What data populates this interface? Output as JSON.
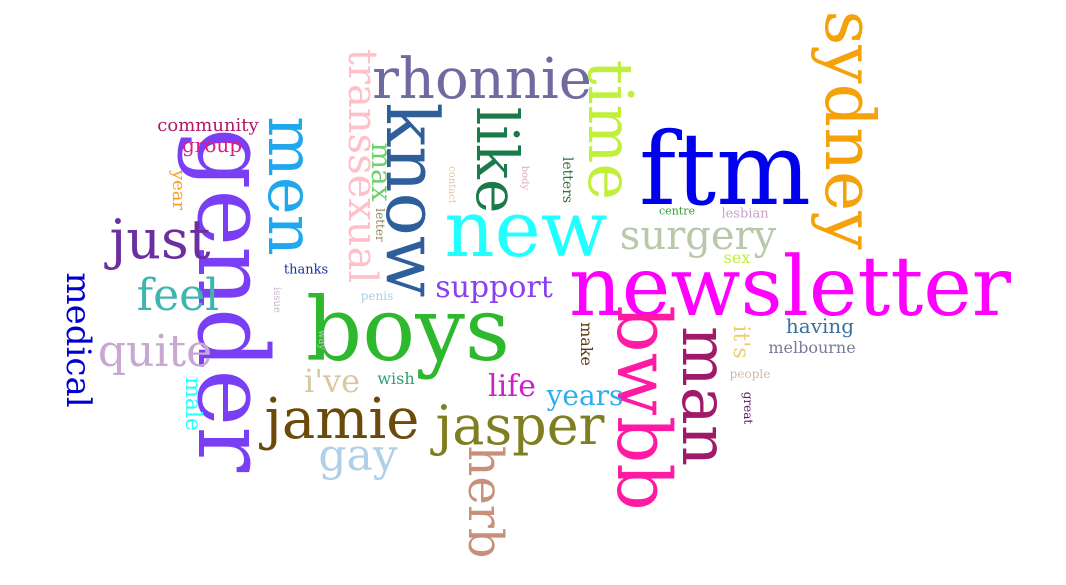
{
  "words": [
    {
      "text": "newsletter",
      "color": "#ff00ff"
    },
    {
      "text": "boys",
      "color": "#2eb82e"
    },
    {
      "text": "ftm",
      "color": "#0000ee"
    },
    {
      "text": "new",
      "color": "#22ffff"
    },
    {
      "text": "gender",
      "color": "#7a3ff5"
    },
    {
      "text": "bwbb",
      "color": "#ff1aa3"
    },
    {
      "text": "sydney",
      "color": "#f5a20a"
    },
    {
      "text": "know",
      "color": "#2f5f9a"
    },
    {
      "text": "rhonnie",
      "color": "#6f6aa0"
    },
    {
      "text": "time",
      "color": "#c0f03a"
    },
    {
      "text": "like",
      "color": "#1a7a4a"
    },
    {
      "text": "man",
      "color": "#a01a6a"
    },
    {
      "text": "jasper",
      "color": "#7f7f22"
    },
    {
      "text": "jamie",
      "color": "#6b4a0a"
    },
    {
      "text": "men",
      "color": "#1fa8ee"
    },
    {
      "text": "just",
      "color": "#6b2fa0"
    },
    {
      "text": "herb",
      "color": "#c8907a"
    },
    {
      "text": "transsexual",
      "color": "#ffc0c8"
    },
    {
      "text": "surgery",
      "color": "#b8c8a8"
    },
    {
      "text": "quite",
      "color": "#c8a8d0"
    },
    {
      "text": "feel",
      "color": "#3fb5b0"
    },
    {
      "text": "gay",
      "color": "#b0d0e8"
    },
    {
      "text": "medical",
      "color": "#0000cc"
    },
    {
      "text": "support",
      "color": "#8a3ff0"
    },
    {
      "text": "max",
      "color": "#6fd06f"
    },
    {
      "text": "i've",
      "color": "#d8c8a0"
    },
    {
      "text": "life",
      "color": "#cc22cc"
    },
    {
      "text": "years",
      "color": "#2ab0ee"
    },
    {
      "text": "male",
      "color": "#22ffff"
    },
    {
      "text": "having",
      "color": "#3a6fa0"
    },
    {
      "text": "it's",
      "color": "#e8d070"
    },
    {
      "text": "community",
      "color": "#b0186a"
    },
    {
      "text": "group",
      "color": "#e01a8a"
    },
    {
      "text": "year",
      "color": "#f5a020"
    },
    {
      "text": "melbourne",
      "color": "#7a7a9a"
    },
    {
      "text": "wish",
      "color": "#2fa06f"
    },
    {
      "text": "make",
      "color": "#5a3a0a"
    },
    {
      "text": "letters",
      "color": "#2f6f3f"
    },
    {
      "text": "sex",
      "color": "#c0f03a"
    },
    {
      "text": "thanks",
      "color": "#1a2fa0"
    },
    {
      "text": "lesbian",
      "color": "#c8a0c8"
    },
    {
      "text": "centre",
      "color": "#2fa02f"
    },
    {
      "text": "people",
      "color": "#d0b8a8"
    },
    {
      "text": "great",
      "color": "#5a1a6a"
    },
    {
      "text": "penis",
      "color": "#a8d0e8"
    },
    {
      "text": "letter",
      "color": "#8a8a5a"
    },
    {
      "text": "contact",
      "color": "#e8c0a0"
    },
    {
      "text": "body",
      "color": "#e0a8b8"
    },
    {
      "text": "issue",
      "color": "#c8b0c8"
    },
    {
      "text": "way",
      "color": "#c8c8c8"
    }
  ]
}
